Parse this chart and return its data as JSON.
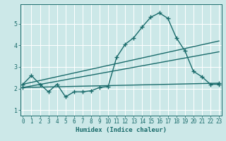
{
  "xlabel": "Humidex (Indice chaleur)",
  "bg_color": "#cce8e8",
  "grid_color": "#ffffff",
  "line_color": "#1a6b6b",
  "x_ticks": [
    0,
    1,
    2,
    3,
    4,
    5,
    6,
    7,
    8,
    9,
    10,
    11,
    12,
    13,
    14,
    15,
    16,
    17,
    18,
    19,
    20,
    21,
    22,
    23
  ],
  "y_ticks": [
    1,
    2,
    3,
    4,
    5
  ],
  "xlim": [
    -0.3,
    23.3
  ],
  "ylim": [
    0.75,
    5.9
  ],
  "line1_x": [
    0,
    1,
    2,
    3,
    4,
    5,
    6,
    7,
    8,
    9,
    10,
    11,
    12,
    13,
    14,
    15,
    16,
    17,
    18,
    19,
    20,
    21,
    22,
    23
  ],
  "line1_y": [
    2.2,
    2.6,
    2.2,
    1.85,
    2.2,
    1.62,
    1.85,
    1.85,
    1.9,
    2.05,
    2.1,
    3.45,
    4.05,
    4.35,
    4.85,
    5.3,
    5.5,
    5.25,
    4.35,
    3.75,
    2.8,
    2.55,
    2.2,
    2.2
  ],
  "line2_x": [
    0,
    23
  ],
  "line2_y": [
    2.2,
    4.2
  ],
  "line3_x": [
    0,
    23
  ],
  "line3_y": [
    2.05,
    3.7
  ],
  "line4_x": [
    0,
    23
  ],
  "line4_y": [
    2.05,
    2.25
  ],
  "marker_size": 2.5,
  "line_width": 1.0,
  "tick_fontsize": 5.5,
  "xlabel_fontsize": 6.5
}
